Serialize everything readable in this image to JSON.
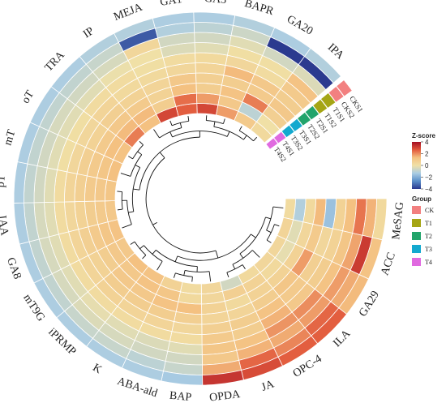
{
  "chart_data": {
    "type": "heatmap",
    "layout": "circular",
    "title": "",
    "features": [
      "MeSAG",
      "ACC",
      "GA29",
      "ILA",
      "OPC-4",
      "JA",
      "OPDA",
      "BAP",
      "ABA-ald",
      "K",
      "iPRMP",
      "mT9G",
      "GA8",
      "IAA",
      "pT",
      "mT",
      "oT",
      "TRA",
      "IP",
      "MEJA",
      "GA1",
      "GA3",
      "BAPR",
      "GA20",
      "IPA"
    ],
    "samples": [
      "T4S2",
      "T4S1",
      "T3S2",
      "T3S1",
      "T2S2",
      "T2S1",
      "T1S2",
      "T1S1",
      "CKS2",
      "CKS1"
    ],
    "sample_groups": [
      "T4",
      "T4",
      "T3",
      "T3",
      "T2",
      "T2",
      "T1",
      "T1",
      "CK",
      "CK"
    ],
    "values": [
      [
        0.2,
        -1.2,
        0.3,
        1.4,
        -1.6,
        0.6,
        1.3,
        2.3,
        1.5,
        0.3
      ],
      [
        0.5,
        -0.3,
        0.4,
        0.9,
        0.4,
        0.6,
        1.1,
        1.7,
        3.2,
        1.2
      ],
      [
        0.4,
        -0.2,
        0.6,
        1.8,
        0.7,
        0.8,
        1.2,
        1.8,
        1.6,
        1.4
      ],
      [
        0.4,
        0.3,
        0.6,
        1.1,
        0.9,
        1.0,
        2.0,
        1.8,
        2.5,
        2.6
      ],
      [
        0.3,
        0.6,
        0.6,
        0.8,
        1.2,
        1.5,
        1.9,
        1.6,
        2.1,
        2.6
      ],
      [
        -0.6,
        0.7,
        0.3,
        0.5,
        0.8,
        0.8,
        1.2,
        1.5,
        2.5,
        2.9
      ],
      [
        0.4,
        0.4,
        0.6,
        0.5,
        0.7,
        0.9,
        1.1,
        1.0,
        1.6,
        3.3
      ],
      [
        0.2,
        0.3,
        1.3,
        0.7,
        0.4,
        0.2,
        -0.3,
        -0.6,
        -0.8,
        -1.4
      ],
      [
        0.6,
        1.1,
        1.2,
        0.8,
        0.5,
        0.2,
        -0.4,
        -0.6,
        -1.0,
        -1.3
      ],
      [
        1.2,
        1.2,
        1.0,
        0.8,
        0.5,
        0.2,
        -0.3,
        -0.5,
        -0.8,
        -1.3
      ],
      [
        1.3,
        1.0,
        1.0,
        0.8,
        0.6,
        0.2,
        -0.2,
        -0.4,
        -0.8,
        -1.3
      ],
      [
        1.0,
        1.0,
        0.8,
        0.6,
        0.5,
        0.2,
        -0.3,
        -0.5,
        -0.9,
        -1.3
      ],
      [
        1.2,
        1.1,
        0.9,
        0.7,
        0.5,
        0.2,
        -0.3,
        -0.5,
        -0.9,
        -1.3
      ],
      [
        1.0,
        0.9,
        0.8,
        0.6,
        0.4,
        0.2,
        -0.3,
        -0.5,
        -0.9,
        -1.3
      ],
      [
        1.1,
        1.0,
        0.9,
        0.7,
        0.5,
        0.2,
        -0.3,
        -0.6,
        -0.9,
        -1.3
      ],
      [
        1.3,
        1.1,
        0.9,
        0.7,
        0.4,
        0.1,
        -0.3,
        -0.6,
        -0.9,
        -1.3
      ],
      [
        1.2,
        1.3,
        0.9,
        0.6,
        0.4,
        0.1,
        -0.3,
        -0.5,
        -0.9,
        -1.3
      ],
      [
        2.2,
        1.4,
        1.0,
        0.7,
        0.5,
        0.2,
        -0.3,
        -0.6,
        -0.9,
        -1.3
      ],
      [
        1.3,
        1.4,
        0.9,
        0.6,
        0.3,
        0.2,
        -0.1,
        -0.5,
        -0.8,
        -1.2
      ],
      [
        3.0,
        0.8,
        0.6,
        0.5,
        0.3,
        0.1,
        0.0,
        0.4,
        -3.5,
        -1.2
      ],
      [
        2.6,
        2.4,
        1.3,
        1.0,
        0.4,
        0.2,
        -0.4,
        -0.6,
        -1.2,
        -1.3
      ],
      [
        3.0,
        1.8,
        0.8,
        0.7,
        0.5,
        0.3,
        -0.3,
        -0.6,
        -1.0,
        -1.3
      ],
      [
        1.8,
        1.0,
        1.2,
        0.8,
        1.4,
        0.4,
        0.1,
        -0.3,
        -0.7,
        -1.2
      ],
      [
        0.9,
        -1.0,
        2.2,
        0.9,
        1.0,
        0.2,
        0.1,
        -0.6,
        -4.0,
        -1.3
      ],
      [
        0.3,
        0.0,
        0.7,
        1.0,
        0.8,
        0.9,
        1.2,
        -0.4,
        -4.0,
        -1.2
      ]
    ],
    "color_scale": {
      "label": "Z-score",
      "min": -4,
      "max": 4,
      "ticks": [
        4,
        2,
        0,
        -2,
        -4
      ],
      "tick_labels": [
        "4",
        "2",
        "0",
        "−2",
        "−4"
      ],
      "stops": [
        "#2b3a8f",
        "#5b8fc9",
        "#abcde3",
        "#f0e0a6",
        "#f4c080",
        "#e2593c",
        "#a50f24"
      ]
    },
    "legend_group": {
      "title": "Group",
      "items": [
        {
          "label": "CK",
          "color": "#f28080"
        },
        {
          "label": "T1",
          "color": "#a5a514"
        },
        {
          "label": "T2",
          "color": "#22a46b"
        },
        {
          "label": "T3",
          "color": "#13a9cf"
        },
        {
          "label": "T4",
          "color": "#e06ae0"
        }
      ]
    }
  }
}
